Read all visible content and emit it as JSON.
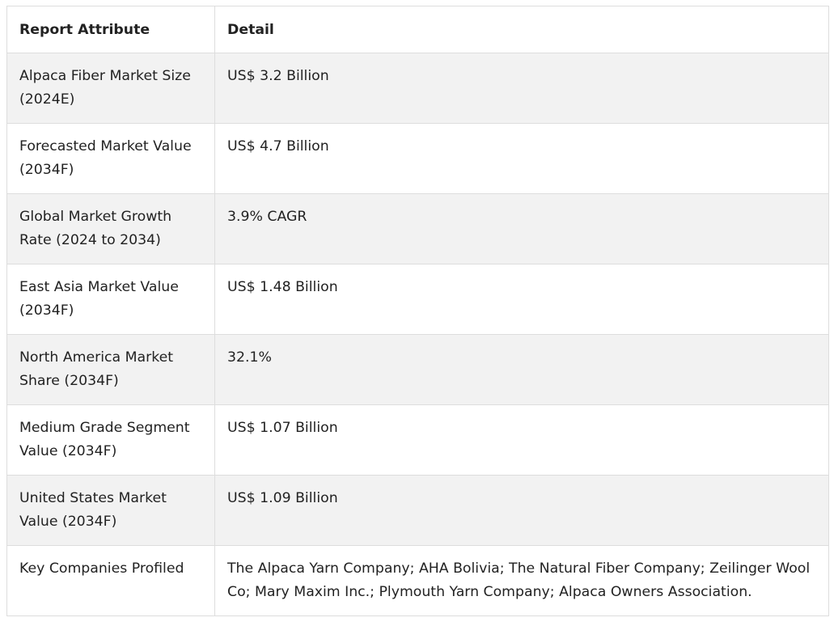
{
  "table": {
    "headers": [
      "Report Attribute",
      "Detail"
    ],
    "rows": [
      [
        "Alpaca Fiber Market Size (2024E)",
        "US$ 3.2 Billion"
      ],
      [
        "Forecasted Market Value (2034F)",
        "US$ 4.7 Billion"
      ],
      [
        "Global Market Growth Rate (2024 to 2034)",
        "3.9% CAGR"
      ],
      [
        "East Asia Market Value (2034F)",
        "US$ 1.48 Billion"
      ],
      [
        "North America Market Share (2034F)",
        "32.1%"
      ],
      [
        "Medium Grade Segment Value (2034F)",
        "US$ 1.07 Billion"
      ],
      [
        "United States Market Value (2034F)",
        "US$ 1.09 Billion"
      ],
      [
        "Key Companies Profiled",
        "The Alpaca Yarn Company; AHA Bolivia; The Natural Fiber Company; Zeilinger Wool Co; Mary Maxim Inc.; Plymouth Yarn Company; Alpaca Owners Association."
      ]
    ]
  }
}
